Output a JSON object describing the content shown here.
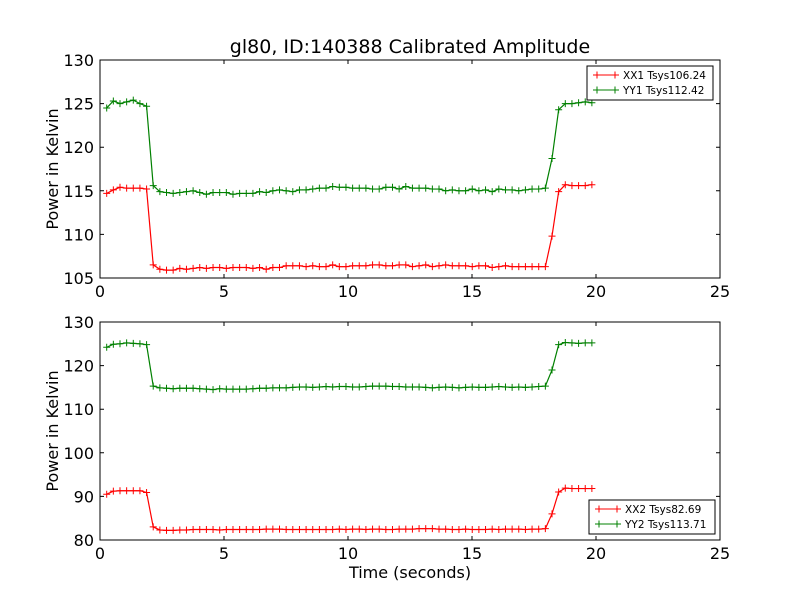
{
  "chart_data": [
    {
      "type": "line",
      "title": "gl80, ID:140388 Calibrated Amplitude",
      "xlabel": "",
      "ylabel": "Power in Kelvin",
      "xlim": [
        0,
        25
      ],
      "ylim": [
        105,
        130
      ],
      "xticks": [
        0,
        5,
        10,
        15,
        20,
        25
      ],
      "yticks": [
        105,
        110,
        115,
        120,
        125,
        130
      ],
      "legend_position": "top-right",
      "x_start": 0.27,
      "x_step": 0.268,
      "series": [
        {
          "name": "XX1 Tsys106.24",
          "color": "#ff0000",
          "values": [
            114.7,
            115.1,
            115.4,
            115.3,
            115.3,
            115.3,
            115.2,
            106.5,
            106.0,
            105.9,
            105.9,
            106.1,
            106.0,
            106.1,
            106.2,
            106.1,
            106.2,
            106.2,
            106.1,
            106.2,
            106.2,
            106.2,
            106.1,
            106.2,
            106.0,
            106.2,
            106.2,
            106.4,
            106.4,
            106.4,
            106.3,
            106.4,
            106.3,
            106.3,
            106.5,
            106.3,
            106.3,
            106.4,
            106.4,
            106.4,
            106.5,
            106.5,
            106.4,
            106.4,
            106.5,
            106.5,
            106.3,
            106.4,
            106.5,
            106.3,
            106.4,
            106.5,
            106.4,
            106.4,
            106.4,
            106.3,
            106.4,
            106.4,
            106.2,
            106.3,
            106.4,
            106.3,
            106.3,
            106.3,
            106.3,
            106.3,
            106.3,
            109.8,
            114.9,
            115.7,
            115.6,
            115.6,
            115.6,
            115.7
          ]
        },
        {
          "name": "YY1 Tsys112.42",
          "color": "#008000",
          "values": [
            124.5,
            125.3,
            125.0,
            125.2,
            125.4,
            125.0,
            124.7,
            115.6,
            114.9,
            114.8,
            114.7,
            114.8,
            114.9,
            115.0,
            114.8,
            114.6,
            114.8,
            114.8,
            114.8,
            114.6,
            114.7,
            114.7,
            114.7,
            114.9,
            114.8,
            115.0,
            115.1,
            115.0,
            114.9,
            115.1,
            115.1,
            115.2,
            115.3,
            115.3,
            115.5,
            115.4,
            115.4,
            115.3,
            115.3,
            115.3,
            115.2,
            115.2,
            115.4,
            115.4,
            115.2,
            115.5,
            115.3,
            115.3,
            115.3,
            115.2,
            115.2,
            115.0,
            115.1,
            115.0,
            115.0,
            115.2,
            115.0,
            115.1,
            114.9,
            115.2,
            115.1,
            115.1,
            115.0,
            115.1,
            115.2,
            115.2,
            115.3,
            118.7,
            124.3,
            125.0,
            125.0,
            125.1,
            125.2,
            125.1
          ]
        }
      ]
    },
    {
      "type": "line",
      "title": "",
      "xlabel": "Time (seconds)",
      "ylabel": "Power in Kelvin",
      "xlim": [
        0,
        25
      ],
      "ylim": [
        80,
        130
      ],
      "xticks": [
        0,
        5,
        10,
        15,
        20,
        25
      ],
      "yticks": [
        80,
        90,
        100,
        110,
        120,
        130
      ],
      "legend_position": "bottom-right",
      "x_start": 0.27,
      "x_step": 0.268,
      "series": [
        {
          "name": "XX2 Tsys82.69",
          "color": "#ff0000",
          "values": [
            90.5,
            91.2,
            91.3,
            91.3,
            91.3,
            91.3,
            90.9,
            83.0,
            82.3,
            82.2,
            82.2,
            82.3,
            82.3,
            82.4,
            82.4,
            82.4,
            82.4,
            82.3,
            82.4,
            82.4,
            82.4,
            82.4,
            82.4,
            82.4,
            82.5,
            82.5,
            82.5,
            82.4,
            82.4,
            82.4,
            82.4,
            82.4,
            82.4,
            82.4,
            82.4,
            82.5,
            82.4,
            82.5,
            82.5,
            82.4,
            82.5,
            82.5,
            82.4,
            82.4,
            82.5,
            82.5,
            82.5,
            82.6,
            82.6,
            82.6,
            82.5,
            82.5,
            82.4,
            82.4,
            82.5,
            82.4,
            82.4,
            82.4,
            82.5,
            82.4,
            82.5,
            82.5,
            82.5,
            82.4,
            82.5,
            82.5,
            82.6,
            86.0,
            91.0,
            91.9,
            91.8,
            91.8,
            91.8,
            91.8
          ]
        },
        {
          "name": "YY2 Tsys113.71",
          "color": "#008000",
          "values": [
            124.2,
            124.9,
            125.0,
            125.2,
            125.1,
            125.0,
            124.8,
            115.3,
            114.9,
            114.8,
            114.7,
            114.8,
            114.8,
            114.8,
            114.7,
            114.6,
            114.5,
            114.7,
            114.6,
            114.6,
            114.6,
            114.6,
            114.7,
            114.8,
            114.8,
            114.9,
            114.9,
            114.9,
            115.0,
            115.1,
            115.1,
            115.0,
            115.1,
            115.2,
            115.1,
            115.2,
            115.2,
            115.1,
            115.1,
            115.2,
            115.3,
            115.3,
            115.3,
            115.2,
            115.2,
            115.1,
            115.1,
            115.1,
            115.0,
            114.9,
            115.0,
            115.1,
            115.0,
            114.9,
            115.0,
            115.1,
            115.0,
            115.0,
            115.1,
            115.2,
            115.1,
            115.0,
            115.1,
            115.0,
            115.1,
            115.2,
            115.3,
            119.0,
            124.8,
            125.3,
            125.2,
            125.1,
            125.2,
            125.2
          ]
        }
      ]
    }
  ]
}
